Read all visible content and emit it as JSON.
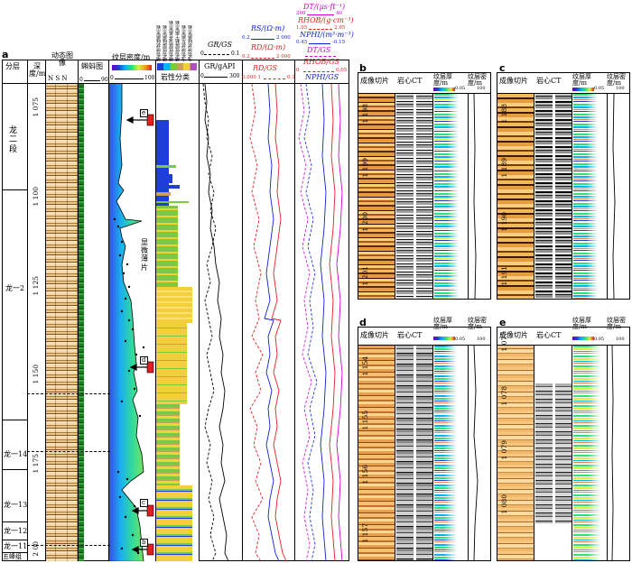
{
  "panels": {
    "a": "a",
    "b": "b",
    "c": "c",
    "d": "d",
    "e": "e"
  },
  "main_headers": {
    "formation": "分层",
    "depth": "深度/m",
    "dynamic_image": "动态图像",
    "nsn": "N  S  N",
    "tadpole": "蝌蚪图",
    "tadpole_scale": [
      "0",
      "90"
    ],
    "lamina_density": "纹层密度/m",
    "lamina_scale": [
      "0",
      "100"
    ],
    "lithology": "岩性分类",
    "gr_gs": "GR/GS",
    "gr_gs_scale": [
      "0",
      "0.1"
    ],
    "gr": "GR/gAPI",
    "gr_scale": [
      "0",
      "300"
    ],
    "rs": "RS/(Ω·m)",
    "rs_scale": [
      "0.2",
      "2 000"
    ],
    "rd": "RD/(Ω·m)",
    "rd_scale": [
      "0.2",
      "2 000"
    ],
    "rd_gs": "RD/GS",
    "rd_gs_scale": [
      "0.000 1",
      "0.1"
    ],
    "dt": "DT/(μs·ft⁻¹)",
    "dt_scale": [
      "200",
      "40"
    ],
    "rhob": "RHOB/(g·cm⁻³)",
    "rhob_scale": [
      "1.95",
      "2.95"
    ],
    "nphi": "NPHI/(m³·m⁻³)",
    "nphi_scale": [
      "0.45",
      "-0.15"
    ],
    "dt_gs": "DT/GS",
    "rhob_gs": "RHOB/GS",
    "rhob_gs_scale": [
      "0",
      "0.05"
    ],
    "nphi_gs": "NPHI/GS",
    "lith_classes": [
      "暗色块状硅质页岩",
      "暗色纹层硅质页岩",
      "暗色纹层混合质页岩",
      "暗色纹层黏土质页岩",
      "浅色块状灰质页岩",
      "浅色块状硅质页岩"
    ]
  },
  "formations": [
    "龙二段",
    "龙一2",
    "龙一14",
    "龙一13",
    "龙一12",
    "龙一11",
    "五峰组"
  ],
  "depth_ticks": [
    "1 075",
    "1 100",
    "1 125",
    "1 150",
    "1 175",
    "2 00"
  ],
  "annotations": {
    "micro": "显微薄片",
    "markers": [
      "e",
      "d",
      "c",
      "b"
    ]
  },
  "sub_headers": {
    "image_slice": "成像切片",
    "core_ct": "岩心CT",
    "thickness": "纹层厚度/m",
    "thickness_scale": [
      "0",
      "0.05"
    ],
    "density": "纹层密度/m",
    "density_scale": [
      "0",
      "100"
    ]
  },
  "sub_depths": {
    "b": [
      "1 198",
      "1 199",
      "1 200",
      "1 201"
    ],
    "c": [
      "1 188",
      "1 189",
      "1 190",
      "1 191"
    ],
    "d": [
      "1 154",
      "1 155",
      "1 156",
      "1 157"
    ],
    "e": [
      "1 077",
      "1 078",
      "1 079",
      "1 080"
    ]
  },
  "colors": {
    "curve_black": "#000000",
    "curve_red": "#e02020",
    "curve_blue": "#1020d0",
    "curve_magenta": "#d000d0",
    "core_orange": "#c8782a",
    "lith_yellow": "#f4cf3c",
    "lith_green": "#7ac943",
    "lith_blue": "#1f3ed8"
  }
}
